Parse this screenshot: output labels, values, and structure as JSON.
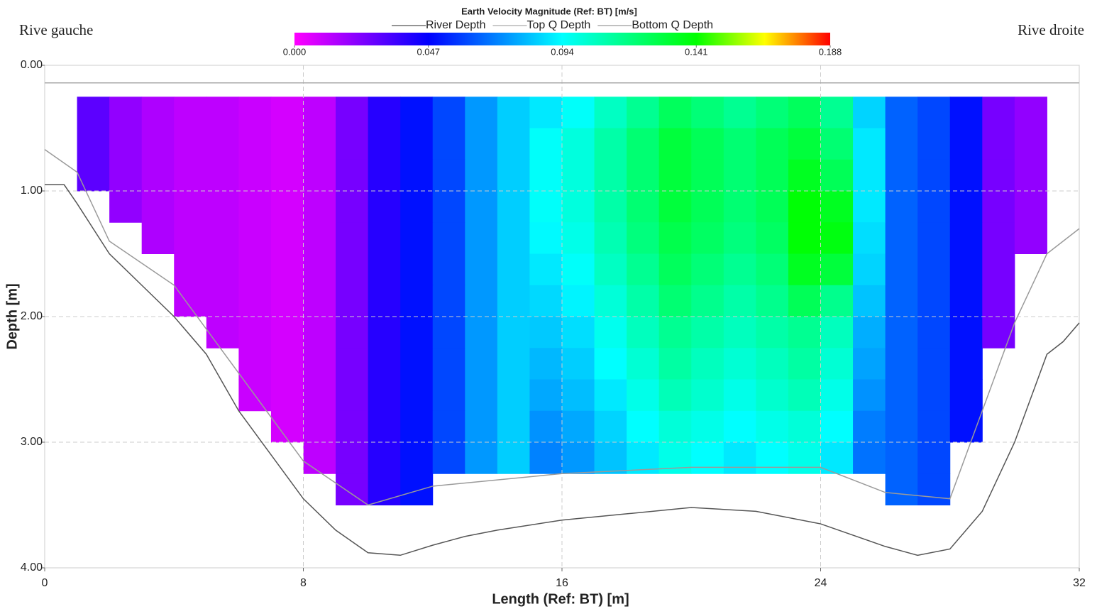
{
  "chart_data": {
    "type": "heatmap",
    "title": "Earth Velocity Magnitude (Ref: BT) [m/s]",
    "annotations": [
      "Rive gauche",
      "Rive droite"
    ],
    "x_label": "Length (Ref: BT) [m]",
    "y_label": "Depth [m]",
    "xlim": [
      0,
      32
    ],
    "xticks": [
      0,
      8,
      16,
      24,
      32
    ],
    "ylim": [
      0,
      4
    ],
    "y_reversed": true,
    "yticks": [
      {
        "value": 0,
        "label": "0.00"
      },
      {
        "value": 1,
        "label": "1.00"
      },
      {
        "value": 2,
        "label": "2.00"
      },
      {
        "value": 3,
        "label": "3.00"
      },
      {
        "value": 4,
        "label": "4.00"
      }
    ],
    "grid": true,
    "legend": "top",
    "zlim": [
      0,
      0.188
    ],
    "colorbar_ticks": [
      {
        "value": 0,
        "label": "0.000"
      },
      {
        "value": 0.047,
        "label": "0.047"
      },
      {
        "value": 0.094,
        "label": "0.094"
      },
      {
        "value": 0.141,
        "label": "0.141"
      },
      {
        "value": 0.188,
        "label": "0.188"
      }
    ],
    "colorscale": [
      [
        0,
        "#ff00ff"
      ],
      [
        0.047,
        "#0000ff"
      ],
      [
        0.094,
        "#00ffff"
      ],
      [
        0.141,
        "#00ff00"
      ],
      [
        0.165,
        "#ffff00"
      ],
      [
        0.188,
        "#ff0000"
      ]
    ],
    "x_bins": [
      1,
      2,
      3,
      4,
      5,
      6,
      7,
      8,
      9,
      10,
      11,
      12,
      13,
      14,
      15,
      16,
      17,
      18,
      19,
      20,
      21,
      22,
      23,
      24,
      25,
      26,
      27,
      28,
      29,
      30,
      31
    ],
    "y_bins": [
      0.25,
      0.5,
      0.75,
      1,
      1.25,
      1.5,
      1.75,
      2,
      2.25,
      2.5,
      2.75,
      3,
      3.25,
      3.5
    ],
    "z": [
      [
        0.03,
        0.02,
        0.015,
        0.012,
        0.012,
        0.01,
        0.008,
        0.012,
        0.025,
        0.04,
        0.05,
        0.06,
        0.075,
        0.085,
        0.09,
        0.095,
        0.105,
        0.114,
        0.124,
        0.119,
        0.114,
        0.119,
        0.124,
        0.114,
        0.086,
        0.065,
        0.06,
        0.05,
        0.025,
        0.02
      ],
      [
        0.03,
        0.02,
        0.015,
        0.012,
        0.012,
        0.01,
        0.008,
        0.012,
        0.025,
        0.04,
        0.05,
        0.06,
        0.075,
        0.085,
        0.095,
        0.1,
        0.11,
        0.12,
        0.13,
        0.125,
        0.12,
        0.125,
        0.13,
        0.12,
        0.09,
        0.065,
        0.06,
        0.05,
        0.025,
        0.02
      ],
      [
        0.03,
        0.02,
        0.015,
        0.012,
        0.012,
        0.01,
        0.008,
        0.012,
        0.025,
        0.04,
        0.05,
        0.06,
        0.075,
        0.085,
        0.095,
        0.1,
        0.11,
        0.12,
        0.13,
        0.125,
        0.12,
        0.125,
        0.135,
        0.125,
        0.09,
        0.065,
        0.06,
        0.05,
        0.025,
        0.02
      ],
      [
        null,
        0.02,
        0.015,
        0.012,
        0.012,
        0.01,
        0.008,
        0.012,
        0.025,
        0.04,
        0.05,
        0.06,
        0.075,
        0.085,
        0.095,
        0.1,
        0.11,
        0.12,
        0.13,
        0.125,
        0.12,
        0.125,
        0.14,
        0.135,
        0.09,
        0.065,
        0.06,
        0.05,
        0.025,
        0.02
      ],
      [
        null,
        null,
        0.015,
        0.012,
        0.012,
        0.01,
        0.008,
        0.012,
        0.025,
        0.04,
        0.05,
        0.06,
        0.075,
        0.085,
        0.093,
        0.098,
        0.108,
        0.118,
        0.127,
        0.123,
        0.118,
        0.123,
        0.14,
        0.138,
        0.088,
        0.065,
        0.06,
        0.05,
        0.025,
        0.02
      ],
      [
        null,
        null,
        null,
        0.012,
        0.012,
        0.01,
        0.008,
        0.012,
        0.025,
        0.04,
        0.05,
        0.06,
        0.075,
        0.085,
        0.09,
        0.095,
        0.105,
        0.114,
        0.124,
        0.119,
        0.114,
        0.119,
        0.135,
        0.13,
        0.086,
        0.065,
        0.06,
        0.05,
        0.025,
        null
      ],
      [
        null,
        null,
        null,
        0.012,
        0.012,
        0.01,
        0.008,
        0.012,
        0.025,
        0.04,
        0.05,
        0.06,
        0.075,
        0.085,
        0.087,
        0.092,
        0.101,
        0.11,
        0.12,
        0.115,
        0.11,
        0.115,
        0.125,
        0.115,
        0.083,
        0.065,
        0.06,
        0.05,
        0.025,
        null
      ],
      [
        null,
        null,
        null,
        null,
        0.012,
        0.01,
        0.008,
        0.012,
        0.025,
        0.04,
        0.05,
        0.06,
        0.075,
        0.085,
        0.084,
        0.088,
        0.097,
        0.106,
        0.114,
        0.11,
        0.106,
        0.11,
        0.114,
        0.106,
        0.079,
        0.065,
        0.06,
        0.05,
        0.025,
        null
      ],
      [
        null,
        null,
        null,
        null,
        null,
        0.01,
        0.008,
        0.012,
        0.025,
        0.04,
        0.05,
        0.06,
        0.075,
        0.085,
        0.081,
        0.085,
        0.094,
        0.102,
        0.111,
        0.106,
        0.102,
        0.106,
        0.111,
        0.102,
        0.077,
        0.065,
        0.06,
        0.05,
        null,
        null
      ],
      [
        null,
        null,
        null,
        null,
        null,
        0.01,
        0.008,
        0.012,
        0.025,
        0.04,
        0.05,
        0.06,
        0.075,
        0.085,
        0.078,
        0.082,
        0.09,
        0.098,
        0.107,
        0.103,
        0.098,
        0.103,
        0.107,
        0.098,
        0.074,
        0.065,
        0.06,
        0.05,
        null,
        null
      ],
      [
        null,
        null,
        null,
        null,
        null,
        null,
        0.008,
        0.012,
        0.025,
        0.04,
        0.05,
        0.06,
        0.075,
        0.085,
        0.074,
        0.078,
        0.086,
        0.094,
        0.101,
        0.098,
        0.094,
        0.098,
        0.101,
        0.094,
        0.07,
        0.065,
        0.06,
        0.05,
        null,
        null
      ],
      [
        null,
        null,
        null,
        null,
        null,
        null,
        null,
        0.012,
        0.025,
        0.04,
        0.05,
        0.06,
        0.075,
        0.085,
        0.071,
        0.075,
        0.083,
        0.09,
        0.098,
        0.094,
        0.09,
        0.094,
        0.098,
        0.09,
        0.068,
        0.065,
        0.06,
        null,
        null,
        null
      ],
      [
        null,
        null,
        null,
        null,
        null,
        null,
        null,
        null,
        0.025,
        0.04,
        0.05,
        null,
        null,
        null,
        null,
        null,
        null,
        null,
        null,
        null,
        null,
        null,
        null,
        null,
        null,
        0.065,
        0.06,
        null,
        null,
        null
      ]
    ],
    "series": [
      {
        "name": "River Depth",
        "color": "#555555",
        "x": [
          0,
          0.6,
          1,
          2,
          3,
          4,
          5,
          6,
          7,
          8,
          9,
          10,
          11,
          12,
          13,
          14,
          16,
          18,
          20,
          22,
          24,
          26,
          27,
          28,
          29,
          30,
          30.5,
          31,
          31.5,
          32
        ],
        "values": [
          0.95,
          0.95,
          1.1,
          1.5,
          1.75,
          2.0,
          2.3,
          2.75,
          3.1,
          3.45,
          3.7,
          3.88,
          3.9,
          3.82,
          3.75,
          3.7,
          3.62,
          3.57,
          3.52,
          3.55,
          3.65,
          3.83,
          3.9,
          3.85,
          3.55,
          3.0,
          2.65,
          2.3,
          2.2,
          2.05
        ]
      },
      {
        "name": "Top Q Depth",
        "color": "#aaaaaa",
        "x": [
          0,
          32
        ],
        "values": [
          0.14,
          0.14
        ]
      },
      {
        "name": "Bottom Q Depth",
        "color": "#9a9a9a",
        "x": [
          0,
          1,
          2,
          4,
          6,
          8,
          10,
          12,
          16,
          20,
          24,
          26,
          28,
          30,
          31,
          32
        ],
        "values": [
          0.67,
          0.85,
          1.4,
          1.75,
          2.45,
          3.15,
          3.5,
          3.35,
          3.25,
          3.2,
          3.2,
          3.4,
          3.45,
          2.05,
          1.5,
          1.3
        ]
      }
    ]
  }
}
